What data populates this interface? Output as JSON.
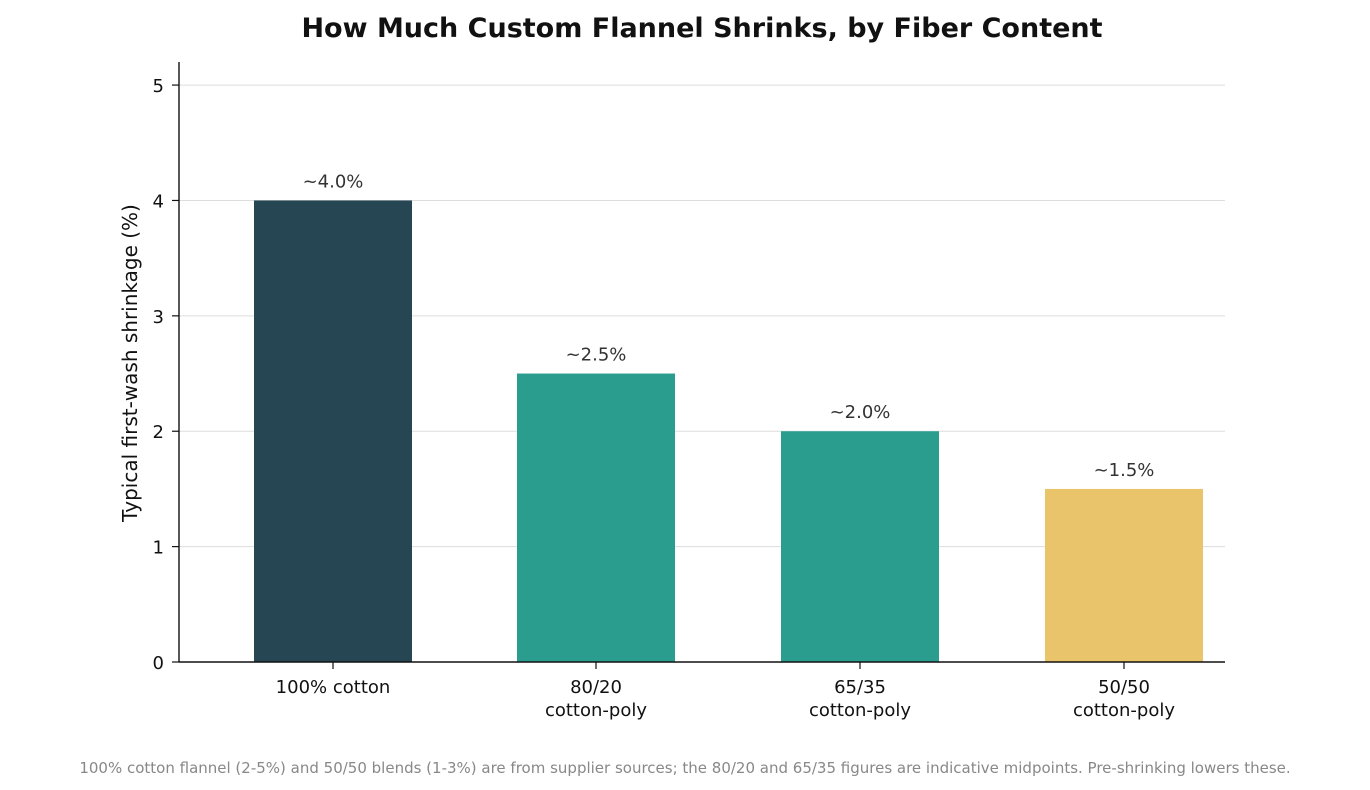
{
  "chart_data": {
    "type": "bar",
    "title": "How Much Custom Flannel Shrinks, by Fiber Content",
    "ylabel": "Typical first-wash shrinkage (%)",
    "xlabel": "",
    "ylim": [
      0,
      5.2
    ],
    "yticks": [
      0,
      1,
      2,
      3,
      4,
      5
    ],
    "grid": "horizontal",
    "categories": [
      [
        "100% cotton"
      ],
      [
        "80/20",
        "cotton-poly"
      ],
      [
        "65/35",
        "cotton-poly"
      ],
      [
        "50/50",
        "cotton-poly"
      ]
    ],
    "values": [
      4.0,
      2.5,
      2.0,
      1.5
    ],
    "data_labels": [
      "~4.0%",
      "~2.5%",
      "~2.0%",
      "~1.5%"
    ],
    "colors": [
      "#264653",
      "#2a9d8f",
      "#2a9d8f",
      "#e9c46a"
    ]
  },
  "footnote": "100% cotton flannel (2-5%) and 50/50 blends (1-3%) are from supplier sources; the 80/20 and 65/35 figures are indicative midpoints. Pre-shrinking lowers these."
}
